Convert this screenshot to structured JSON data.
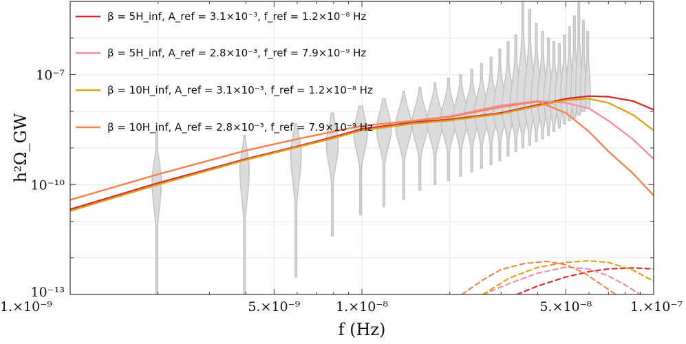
{
  "chart_data": {
    "type": "line",
    "x_scale": "log",
    "y_scale": "log",
    "xlim": [
      1e-09,
      1e-07
    ],
    "ylim": [
      1e-13,
      1e-05
    ],
    "xlabel": "f (Hz)",
    "ylabel": "h²Ω_GW",
    "x_tick_labels": [
      {
        "value": 1e-09,
        "label": "1.×10⁻⁹"
      },
      {
        "value": 5e-09,
        "label": "5.×10⁻⁹"
      },
      {
        "value": 1e-08,
        "label": "1.×10⁻⁸"
      },
      {
        "value": 5e-08,
        "label": "5.×10⁻⁸"
      },
      {
        "value": 1e-07,
        "label": "1.×10⁻⁷"
      }
    ],
    "y_tick_labels": [
      {
        "value": 1e-13,
        "label": "10⁻¹³"
      },
      {
        "value": 1e-10,
        "label": "10⁻¹⁰"
      },
      {
        "value": 1e-07,
        "label": "10⁻⁷"
      }
    ],
    "grid": true,
    "legend_position": "top-left",
    "legend": [
      {
        "label": "β = 5H_inf, A_ref = 3.1×10⁻³, f_ref = 1.2×10⁻⁸ Hz",
        "color": "#d62f2f"
      },
      {
        "label": "β = 5H_inf, A_ref = 2.8×10⁻³, f_ref = 7.9×10⁻⁹ Hz",
        "color": "#f28cae"
      },
      {
        "label": "β = 10H_inf, A_ref = 3.1×10⁻³, f_ref = 1.2×10⁻⁸ Hz",
        "color": "#dca21d"
      },
      {
        "label": "β = 10H_inf, A_ref = 2.8×10⁻³, f_ref = 7.9×10⁻⁹ Hz",
        "color": "#f5854f"
      }
    ],
    "series": [
      {
        "color": "#d62f2f",
        "style": "solid",
        "x": [
          1e-09,
          2e-09,
          4e-09,
          6e-09,
          8e-09,
          1e-08,
          1.5e-08,
          2e-08,
          3e-08,
          4e-08,
          5e-08,
          6e-08,
          7e-08,
          8.5e-08,
          1e-07
        ],
        "y": [
          2.1e-11,
          1.1e-10,
          5e-10,
          1.1e-09,
          2e-09,
          3.3e-09,
          5e-09,
          6e-09,
          9e-09,
          1.5e-08,
          2.2e-08,
          2.6e-08,
          2.5e-08,
          1.9e-08,
          1.1e-08
        ]
      },
      {
        "color": "#f28cae",
        "style": "solid",
        "x": [
          1e-09,
          2e-09,
          4e-09,
          6e-09,
          8e-09,
          1e-08,
          1.5e-08,
          2e-08,
          3e-08,
          4e-08,
          5e-08,
          6e-08,
          7e-08,
          8.5e-08,
          1e-07
        ],
        "y": [
          3.8e-11,
          1.9e-10,
          8.5e-10,
          1.75e-09,
          2.8e-09,
          4e-09,
          5.5e-09,
          7.3e-09,
          1.45e-08,
          1.9e-08,
          1.7e-08,
          1.2e-08,
          5.5e-09,
          1.7e-09,
          5e-10
        ]
      },
      {
        "color": "#dca21d",
        "style": "solid",
        "x": [
          1e-09,
          2e-09,
          4e-09,
          6e-09,
          8e-09,
          1e-08,
          1.5e-08,
          2e-08,
          3e-08,
          4e-08,
          5e-08,
          6e-08,
          7e-08,
          8.5e-08,
          1e-07
        ],
        "y": [
          1.9e-11,
          1e-10,
          4.7e-10,
          1.05e-09,
          1.85e-09,
          3e-09,
          4.6e-09,
          5.6e-09,
          8.5e-09,
          1.4e-08,
          2e-08,
          2.2e-08,
          1.7e-08,
          8e-09,
          3e-09
        ]
      },
      {
        "color": "#f5854f",
        "style": "solid",
        "x": [
          1e-09,
          2e-09,
          4e-09,
          6e-09,
          8e-09,
          1e-08,
          1.5e-08,
          2e-08,
          3e-08,
          4e-08,
          5e-08,
          6e-08,
          7e-08,
          8.5e-08,
          1e-07
        ],
        "y": [
          3.8e-11,
          1.9e-10,
          8.5e-10,
          1.75e-09,
          2.8e-09,
          4e-09,
          5.5e-09,
          7e-09,
          1.3e-08,
          1.85e-08,
          9e-09,
          2.8e-09,
          8e-10,
          2e-10,
          5e-11
        ]
      },
      {
        "color": "#d62f2f",
        "style": "dashed",
        "x": [
          3.4e-08,
          4e-08,
          5e-08,
          6e-08,
          7e-08,
          8.5e-08,
          1e-07
        ],
        "y": [
          1e-13,
          1.7e-13,
          3e-13,
          4.2e-13,
          5e-13,
          5.3e-13,
          5e-13
        ]
      },
      {
        "color": "#f28cae",
        "style": "dashed",
        "x": [
          2.6e-08,
          3.2e-08,
          4e-08,
          5e-08,
          6e-08,
          7e-08,
          8e-08,
          9e-08
        ],
        "y": [
          1e-13,
          2e-13,
          3.8e-13,
          5.6e-13,
          5e-13,
          3.2e-13,
          1.8e-13,
          1e-13
        ]
      },
      {
        "color": "#dca21d",
        "style": "dashed",
        "x": [
          2.6e-08,
          3.2e-08,
          4e-08,
          5e-08,
          6e-08,
          7e-08,
          8.5e-08,
          1e-07
        ],
        "y": [
          1e-13,
          2.8e-13,
          5.5e-13,
          7.5e-13,
          8.3e-13,
          7.5e-13,
          4.6e-13,
          2.3e-13
        ]
      },
      {
        "color": "#f5854f",
        "style": "dashed",
        "x": [
          2.2e-08,
          2.6e-08,
          3e-08,
          3.6e-08,
          4.3e-08,
          5e-08,
          5.8e-08,
          6.8e-08,
          7.4e-08
        ],
        "y": [
          1e-13,
          2.5e-13,
          4.8e-13,
          7e-13,
          8e-13,
          6.5e-13,
          3.8e-13,
          1.6e-13,
          1e-13
        ]
      }
    ],
    "violins": [
      {
        "x": 1.98e-09,
        "y_low": 1e-13,
        "y_high": 3e-09,
        "y_peak": 1.2e-10,
        "width": 0.035
      },
      {
        "x": 3.96e-09,
        "y_low": 1e-13,
        "y_high": 2.2e-09,
        "y_peak": 2.6e-10,
        "width": 0.035
      },
      {
        "x": 5.94e-09,
        "y_low": 3e-13,
        "y_high": 4.5e-09,
        "y_peak": 7e-10,
        "width": 0.04
      },
      {
        "x": 7.92e-09,
        "y_low": 4e-12,
        "y_high": 9e-09,
        "y_peak": 1.3e-09,
        "width": 0.045
      },
      {
        "x": 9.9e-09,
        "y_low": 1.5e-11,
        "y_high": 1.4e-08,
        "y_peak": 2.5e-09,
        "width": 0.05
      },
      {
        "x": 1.19e-08,
        "y_low": 2.5e-11,
        "y_high": 2.2e-08,
        "y_peak": 3.2e-09,
        "width": 0.055
      },
      {
        "x": 1.39e-08,
        "y_low": 4e-11,
        "y_high": 3.5e-08,
        "y_peak": 3.8e-09,
        "width": 0.06
      },
      {
        "x": 1.58e-08,
        "y_low": 7e-11,
        "y_high": 4.5e-08,
        "y_peak": 4.5e-09,
        "width": 0.06
      },
      {
        "x": 1.78e-08,
        "y_low": 1e-10,
        "y_high": 6e-08,
        "y_peak": 5.2e-09,
        "width": 0.06
      },
      {
        "x": 1.98e-08,
        "y_low": 1.3e-10,
        "y_high": 8e-08,
        "y_peak": 6e-09,
        "width": 0.058
      },
      {
        "x": 2.18e-08,
        "y_low": 1.7e-10,
        "y_high": 1e-07,
        "y_peak": 7e-09,
        "width": 0.056
      },
      {
        "x": 2.38e-08,
        "y_low": 2.2e-10,
        "y_high": 1.4e-07,
        "y_peak": 8e-09,
        "width": 0.054
      },
      {
        "x": 2.57e-08,
        "y_low": 2.8e-10,
        "y_high": 2e-07,
        "y_peak": 9e-09,
        "width": 0.052
      },
      {
        "x": 2.77e-08,
        "y_low": 3.5e-10,
        "y_high": 3e-07,
        "y_peak": 1e-08,
        "width": 0.05
      },
      {
        "x": 2.97e-08,
        "y_low": 4.5e-10,
        "y_high": 5e-07,
        "y_peak": 1.1e-08,
        "width": 0.048
      },
      {
        "x": 3.17e-08,
        "y_low": 6e-10,
        "y_high": 8e-07,
        "y_peak": 1.2e-08,
        "width": 0.046
      },
      {
        "x": 3.37e-08,
        "y_low": 8e-10,
        "y_high": 1.2e-06,
        "y_peak": 1.3e-08,
        "width": 0.044
      },
      {
        "x": 3.56e-08,
        "y_low": 1e-09,
        "y_high": 1e-05,
        "y_peak": 1.5e-08,
        "width": 0.045
      },
      {
        "x": 3.76e-08,
        "y_low": 1.2e-09,
        "y_high": 6e-06,
        "y_peak": 1.6e-08,
        "width": 0.042
      },
      {
        "x": 3.96e-08,
        "y_low": 1.5e-09,
        "y_high": 2.5e-06,
        "y_peak": 1.8e-08,
        "width": 0.04
      },
      {
        "x": 4.16e-08,
        "y_low": 1.8e-09,
        "y_high": 1.5e-06,
        "y_peak": 2e-08,
        "width": 0.038
      },
      {
        "x": 4.36e-08,
        "y_low": 2.2e-09,
        "y_high": 1e-06,
        "y_peak": 2.2e-08,
        "width": 0.036
      },
      {
        "x": 4.55e-08,
        "y_low": 2.8e-09,
        "y_high": 8e-07,
        "y_peak": 2.4e-08,
        "width": 0.034
      },
      {
        "x": 4.75e-08,
        "y_low": 3.5e-09,
        "y_high": 7e-07,
        "y_peak": 2.6e-08,
        "width": 0.032
      },
      {
        "x": 4.95e-08,
        "y_low": 4.5e-09,
        "y_high": 1.2e-06,
        "y_peak": 2.8e-08,
        "width": 0.03
      },
      {
        "x": 5.15e-08,
        "y_low": 5.5e-09,
        "y_high": 2e-06,
        "y_peak": 3e-08,
        "width": 0.028
      },
      {
        "x": 5.35e-08,
        "y_low": 6.5e-09,
        "y_high": 4e-06,
        "y_peak": 3.2e-08,
        "width": 0.026
      },
      {
        "x": 5.54e-08,
        "y_low": 8e-09,
        "y_high": 1e-05,
        "y_peak": 3.3e-08,
        "width": 0.024
      },
      {
        "x": 5.74e-08,
        "y_low": 1e-08,
        "y_high": 3e-06,
        "y_peak": 3.4e-08,
        "width": 0.022
      },
      {
        "x": 5.94e-08,
        "y_low": 1.2e-08,
        "y_high": 1.5e-06,
        "y_peak": 3.5e-08,
        "width": 0.02
      }
    ]
  }
}
